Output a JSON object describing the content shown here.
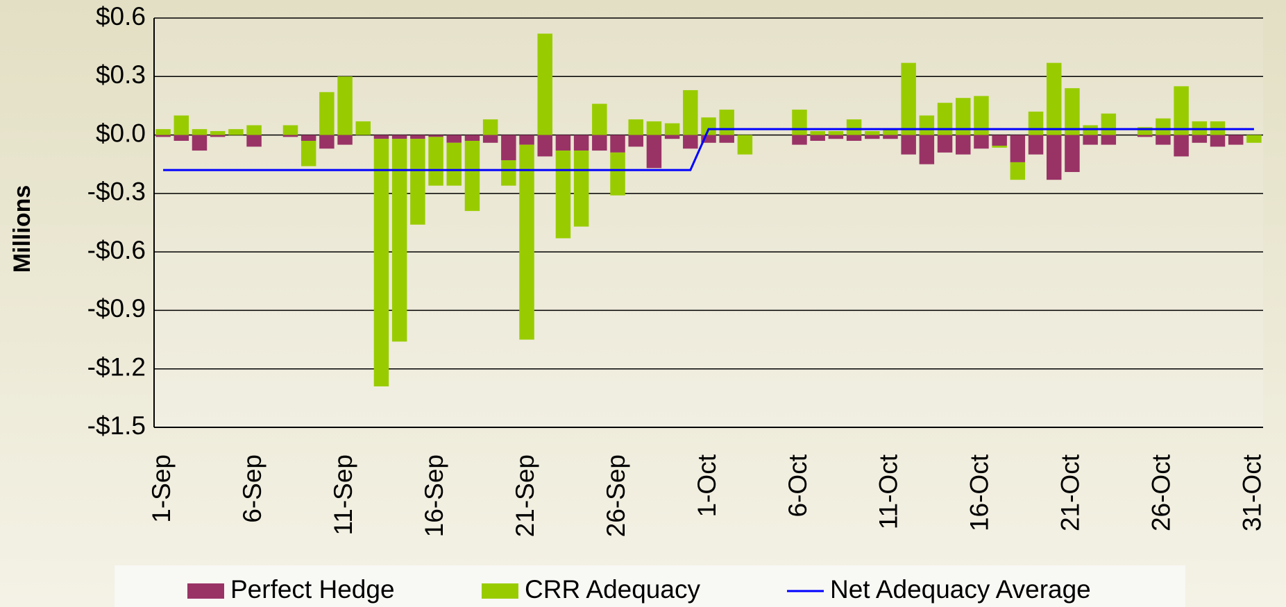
{
  "chart_data": {
    "type": "bar",
    "y_label": "Millions",
    "categories": [
      "1-Sep",
      null,
      null,
      null,
      null,
      "6-Sep",
      null,
      null,
      null,
      null,
      "11-Sep",
      null,
      null,
      null,
      null,
      "16-Sep",
      null,
      null,
      null,
      null,
      "21-Sep",
      null,
      null,
      null,
      null,
      "26-Sep",
      null,
      null,
      null,
      null,
      "1-Oct",
      null,
      null,
      null,
      null,
      "6-Oct",
      null,
      null,
      null,
      null,
      "11-Oct",
      null,
      null,
      null,
      null,
      "16-Oct",
      null,
      null,
      null,
      null,
      "21-Oct",
      null,
      null,
      null,
      null,
      "26-Oct",
      null,
      null,
      null,
      null,
      "31-Oct"
    ],
    "series": [
      {
        "name": "Perfect Hedge",
        "type": "bar",
        "color": "#993366",
        "values": [
          -0.01,
          -0.03,
          -0.08,
          -0.01,
          0,
          -0.06,
          0,
          -0.01,
          -0.03,
          -0.07,
          -0.05,
          0,
          -0.02,
          -0.02,
          -0.02,
          -0.01,
          -0.04,
          -0.03,
          -0.04,
          -0.13,
          -0.05,
          -0.11,
          -0.08,
          -0.08,
          -0.08,
          -0.09,
          -0.06,
          -0.17,
          -0.02,
          -0.07,
          -0.04,
          -0.04,
          0,
          0,
          0,
          -0.05,
          -0.03,
          -0.02,
          -0.03,
          -0.02,
          -0.02,
          -0.1,
          -0.15,
          -0.09,
          -0.1,
          -0.07,
          -0.055,
          -0.14,
          -0.1,
          -0.23,
          -0.19,
          -0.05,
          -0.05,
          0,
          -0.01,
          -0.05,
          -0.11,
          -0.04,
          -0.06,
          -0.05,
          0
        ]
      },
      {
        "name": "CRR Adequacy",
        "type": "bar",
        "color": "#99cc00",
        "values": [
          0.03,
          0.1,
          0.03,
          0.02,
          0.03,
          0.05,
          0,
          0.05,
          -0.13,
          0.22,
          0.3,
          0.07,
          -1.27,
          -1.04,
          -0.44,
          -0.25,
          -0.22,
          -0.36,
          0.08,
          -0.13,
          -1.0,
          0.52,
          -0.45,
          -0.39,
          0.16,
          -0.22,
          0.08,
          0.07,
          0.06,
          0.23,
          0.09,
          0.13,
          -0.1,
          0,
          0,
          0.13,
          0.02,
          0.02,
          0.08,
          0.02,
          0.03,
          0.37,
          0.1,
          0.165,
          0.19,
          0.2,
          -0.01,
          -0.09,
          0.12,
          0.37,
          0.24,
          0.05,
          0.11,
          0,
          0.04,
          0.085,
          0.25,
          0.07,
          0.07,
          0,
          -0.04
        ]
      },
      {
        "name": "Net Adequacy Average",
        "type": "line",
        "color": "#0000ff",
        "values": [
          -0.18,
          -0.18,
          -0.18,
          -0.18,
          -0.18,
          -0.18,
          -0.18,
          -0.18,
          -0.18,
          -0.18,
          -0.18,
          -0.18,
          -0.18,
          -0.18,
          -0.18,
          -0.18,
          -0.18,
          -0.18,
          -0.18,
          -0.18,
          -0.18,
          -0.18,
          -0.18,
          -0.18,
          -0.18,
          -0.18,
          -0.18,
          -0.18,
          -0.18,
          -0.18,
          0.03,
          0.03,
          0.03,
          0.03,
          0.03,
          0.03,
          0.03,
          0.03,
          0.03,
          0.03,
          0.03,
          0.03,
          0.03,
          0.03,
          0.03,
          0.03,
          0.03,
          0.03,
          0.03,
          0.03,
          0.03,
          0.03,
          0.03,
          0.03,
          0.03,
          0.03,
          0.03,
          0.03,
          0.03,
          0.03,
          0.03
        ]
      }
    ],
    "stacked": true,
    "ylim": [
      -1.5,
      0.6
    ],
    "yticks": [
      {
        "value": -1.5,
        "label": "-$1.5"
      },
      {
        "value": -1.2,
        "label": "-$1.2"
      },
      {
        "value": -0.9,
        "label": "-$0.9"
      },
      {
        "value": -0.6,
        "label": "-$0.6"
      },
      {
        "value": -0.3,
        "label": "-$0.3"
      },
      {
        "value": 0,
        "label": "$0.0"
      },
      {
        "value": 0.3,
        "label": "$0.3"
      },
      {
        "value": 0.6,
        "label": "$0.6"
      }
    ],
    "grid": true,
    "legend": "bottom"
  }
}
